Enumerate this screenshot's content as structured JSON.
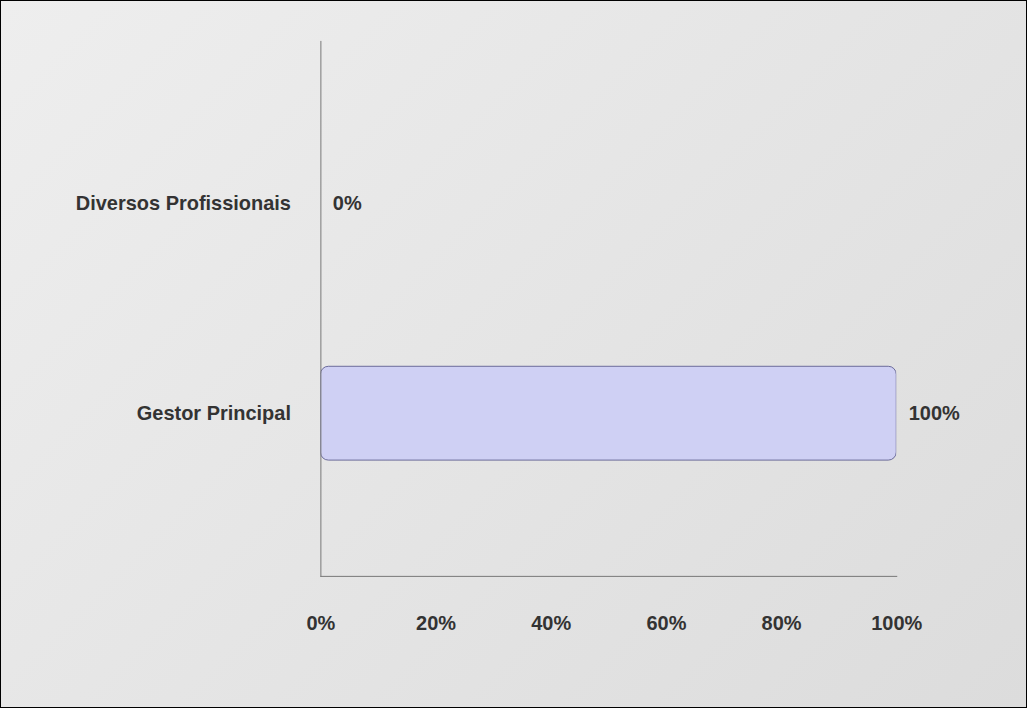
{
  "chart_data": {
    "type": "bar",
    "orientation": "horizontal",
    "categories": [
      "Diversos Profissionais",
      "Gestor Principal"
    ],
    "values": [
      0,
      100
    ],
    "value_labels": [
      "0%",
      "100%"
    ],
    "colors": [
      "#8484b8",
      "#cfd0f4"
    ],
    "xlim": [
      0,
      100
    ],
    "xticks": [
      {
        "value": 0,
        "label": "0%"
      },
      {
        "value": 20,
        "label": "20%"
      },
      {
        "value": 40,
        "label": "40%"
      },
      {
        "value": 60,
        "label": "60%"
      },
      {
        "value": 80,
        "label": "80%"
      },
      {
        "value": 100,
        "label": "100%"
      }
    ],
    "grid": false,
    "data_labels": true
  }
}
